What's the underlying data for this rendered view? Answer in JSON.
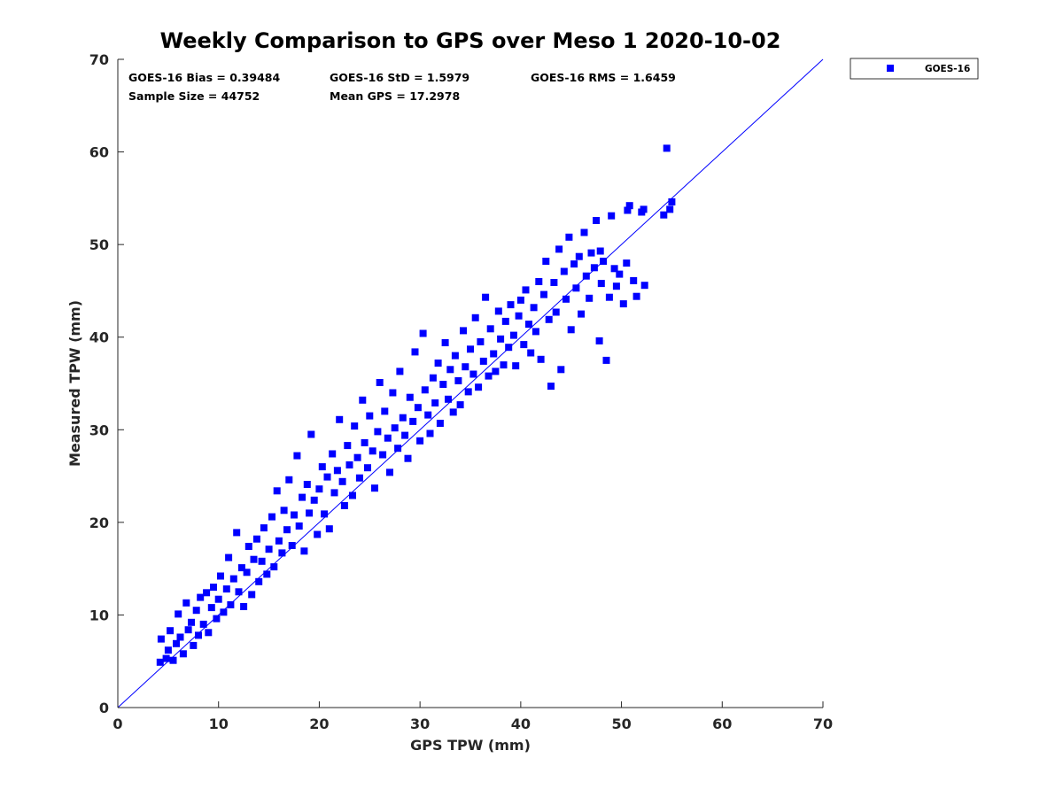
{
  "chart_data": {
    "type": "scatter",
    "title": "Weekly Comparison to GPS over Meso 1 2020-10-02",
    "xlabel": "GPS TPW (mm)",
    "ylabel": "Measured TPW (mm)",
    "xlim": [
      0,
      70
    ],
    "ylim": [
      0,
      70
    ],
    "xticks": [
      "0",
      "10",
      "20",
      "30",
      "40",
      "50",
      "60",
      "70"
    ],
    "yticks": [
      "0",
      "10",
      "20",
      "30",
      "40",
      "50",
      "60",
      "70"
    ],
    "grid": false,
    "legend_position": "outside-top-right",
    "reference_line": {
      "name": "1:1 line",
      "x": [
        0,
        70
      ],
      "y": [
        0,
        70
      ]
    },
    "stats": [
      "GOES-16 Bias = 0.39484",
      "GOES-16 StD = 1.5979",
      "GOES-16 RMS = 1.6459",
      "Sample Size = 44752",
      "Mean GPS = 17.2978"
    ],
    "series": [
      {
        "name": "GOES-16",
        "color": "#0000ff",
        "marker": "square",
        "points": [
          [
            4.2,
            4.9
          ],
          [
            4.3,
            7.4
          ],
          [
            4.8,
            5.3
          ],
          [
            5.0,
            6.2
          ],
          [
            5.2,
            8.3
          ],
          [
            5.5,
            5.1
          ],
          [
            5.8,
            6.9
          ],
          [
            6.0,
            10.1
          ],
          [
            6.2,
            7.6
          ],
          [
            6.5,
            5.8
          ],
          [
            6.8,
            11.3
          ],
          [
            7.0,
            8.4
          ],
          [
            7.3,
            9.2
          ],
          [
            7.5,
            6.7
          ],
          [
            7.8,
            10.5
          ],
          [
            8.0,
            7.8
          ],
          [
            8.2,
            11.9
          ],
          [
            8.5,
            9.0
          ],
          [
            8.8,
            12.4
          ],
          [
            9.0,
            8.1
          ],
          [
            9.3,
            10.8
          ],
          [
            9.5,
            13.0
          ],
          [
            9.8,
            9.6
          ],
          [
            10.0,
            11.7
          ],
          [
            10.2,
            14.2
          ],
          [
            10.5,
            10.3
          ],
          [
            10.8,
            12.8
          ],
          [
            11.0,
            16.2
          ],
          [
            11.2,
            11.1
          ],
          [
            11.5,
            13.9
          ],
          [
            11.8,
            18.9
          ],
          [
            12.0,
            12.5
          ],
          [
            12.3,
            15.1
          ],
          [
            12.5,
            10.9
          ],
          [
            12.8,
            14.6
          ],
          [
            13.0,
            17.4
          ],
          [
            13.3,
            12.2
          ],
          [
            13.5,
            16.0
          ],
          [
            13.8,
            18.2
          ],
          [
            14.0,
            13.6
          ],
          [
            14.3,
            15.8
          ],
          [
            14.5,
            19.4
          ],
          [
            14.8,
            14.4
          ],
          [
            15.0,
            17.1
          ],
          [
            15.3,
            20.6
          ],
          [
            15.5,
            15.2
          ],
          [
            15.8,
            23.4
          ],
          [
            16.0,
            18.0
          ],
          [
            16.3,
            16.7
          ],
          [
            16.5,
            21.3
          ],
          [
            16.8,
            19.2
          ],
          [
            17.0,
            24.6
          ],
          [
            17.3,
            17.5
          ],
          [
            17.5,
            20.8
          ],
          [
            17.8,
            27.2
          ],
          [
            18.0,
            19.6
          ],
          [
            18.3,
            22.7
          ],
          [
            18.5,
            16.9
          ],
          [
            18.8,
            24.1
          ],
          [
            19.0,
            21.0
          ],
          [
            19.2,
            29.5
          ],
          [
            19.5,
            22.4
          ],
          [
            19.8,
            18.7
          ],
          [
            20.0,
            23.6
          ],
          [
            20.3,
            26.0
          ],
          [
            20.5,
            20.9
          ],
          [
            20.8,
            24.9
          ],
          [
            21.0,
            19.3
          ],
          [
            21.3,
            27.4
          ],
          [
            21.5,
            23.2
          ],
          [
            21.8,
            25.6
          ],
          [
            22.0,
            31.1
          ],
          [
            22.3,
            24.4
          ],
          [
            22.5,
            21.8
          ],
          [
            22.8,
            28.3
          ],
          [
            23.0,
            26.2
          ],
          [
            23.3,
            22.9
          ],
          [
            23.5,
            30.4
          ],
          [
            23.8,
            27.0
          ],
          [
            24.0,
            24.8
          ],
          [
            24.3,
            33.2
          ],
          [
            24.5,
            28.6
          ],
          [
            24.8,
            25.9
          ],
          [
            25.0,
            31.5
          ],
          [
            25.3,
            27.7
          ],
          [
            25.5,
            23.7
          ],
          [
            25.8,
            29.8
          ],
          [
            26.0,
            35.1
          ],
          [
            26.3,
            27.3
          ],
          [
            26.5,
            32.0
          ],
          [
            26.8,
            29.1
          ],
          [
            27.0,
            25.4
          ],
          [
            27.3,
            34.0
          ],
          [
            27.5,
            30.2
          ],
          [
            27.8,
            28.0
          ],
          [
            28.0,
            36.3
          ],
          [
            28.3,
            31.3
          ],
          [
            28.5,
            29.4
          ],
          [
            28.8,
            26.9
          ],
          [
            29.0,
            33.5
          ],
          [
            29.3,
            30.9
          ],
          [
            29.5,
            38.4
          ],
          [
            29.8,
            32.4
          ],
          [
            30.0,
            28.8
          ],
          [
            30.3,
            40.4
          ],
          [
            30.5,
            34.3
          ],
          [
            30.8,
            31.6
          ],
          [
            31.0,
            29.6
          ],
          [
            31.3,
            35.6
          ],
          [
            31.5,
            32.9
          ],
          [
            31.8,
            37.2
          ],
          [
            32.0,
            30.7
          ],
          [
            32.3,
            34.9
          ],
          [
            32.5,
            39.4
          ],
          [
            32.8,
            33.3
          ],
          [
            33.0,
            36.5
          ],
          [
            33.3,
            31.9
          ],
          [
            33.5,
            38.0
          ],
          [
            33.8,
            35.3
          ],
          [
            34.0,
            32.7
          ],
          [
            34.3,
            40.7
          ],
          [
            34.5,
            36.8
          ],
          [
            34.8,
            34.1
          ],
          [
            35.0,
            38.7
          ],
          [
            35.3,
            36.0
          ],
          [
            35.5,
            42.1
          ],
          [
            35.8,
            34.6
          ],
          [
            36.0,
            39.5
          ],
          [
            36.3,
            37.4
          ],
          [
            36.5,
            44.3
          ],
          [
            36.8,
            35.8
          ],
          [
            37.0,
            40.9
          ],
          [
            37.3,
            38.2
          ],
          [
            37.5,
            36.3
          ],
          [
            37.8,
            42.8
          ],
          [
            38.0,
            39.8
          ],
          [
            38.3,
            37.0
          ],
          [
            38.5,
            41.7
          ],
          [
            38.8,
            38.9
          ],
          [
            39.0,
            43.5
          ],
          [
            39.3,
            40.2
          ],
          [
            39.5,
            36.9
          ],
          [
            39.8,
            42.3
          ],
          [
            40.0,
            44.0
          ],
          [
            40.3,
            39.2
          ],
          [
            40.5,
            45.1
          ],
          [
            40.8,
            41.4
          ],
          [
            41.0,
            38.3
          ],
          [
            41.3,
            43.2
          ],
          [
            41.5,
            40.6
          ],
          [
            41.8,
            46.0
          ],
          [
            42.0,
            37.6
          ],
          [
            42.3,
            44.6
          ],
          [
            42.5,
            48.2
          ],
          [
            42.8,
            41.9
          ],
          [
            43.0,
            34.7
          ],
          [
            43.3,
            45.9
          ],
          [
            43.5,
            42.7
          ],
          [
            43.8,
            49.5
          ],
          [
            44.0,
            36.5
          ],
          [
            44.3,
            47.1
          ],
          [
            44.5,
            44.1
          ],
          [
            44.8,
            50.8
          ],
          [
            45.0,
            40.8
          ],
          [
            45.3,
            47.9
          ],
          [
            45.5,
            45.3
          ],
          [
            45.8,
            48.7
          ],
          [
            46.0,
            42.5
          ],
          [
            46.3,
            51.3
          ],
          [
            46.5,
            46.6
          ],
          [
            46.8,
            44.2
          ],
          [
            47.0,
            49.1
          ],
          [
            47.3,
            47.5
          ],
          [
            47.5,
            52.6
          ],
          [
            47.8,
            39.6
          ],
          [
            48.0,
            45.8
          ],
          [
            48.2,
            48.2
          ],
          [
            48.5,
            37.5
          ],
          [
            48.8,
            44.3
          ],
          [
            49.0,
            53.1
          ],
          [
            49.3,
            47.4
          ],
          [
            49.5,
            45.5
          ],
          [
            49.8,
            46.8
          ],
          [
            50.2,
            43.6
          ],
          [
            50.5,
            48.0
          ],
          [
            50.8,
            54.2
          ],
          [
            51.2,
            46.1
          ],
          [
            51.5,
            44.4
          ],
          [
            52.0,
            53.5
          ],
          [
            52.3,
            45.6
          ],
          [
            54.2,
            53.2
          ],
          [
            54.5,
            60.4
          ],
          [
            54.8,
            53.8
          ],
          [
            55.0,
            54.6
          ],
          [
            52.2,
            53.8
          ],
          [
            50.6,
            53.7
          ],
          [
            47.9,
            49.3
          ]
        ]
      }
    ]
  }
}
